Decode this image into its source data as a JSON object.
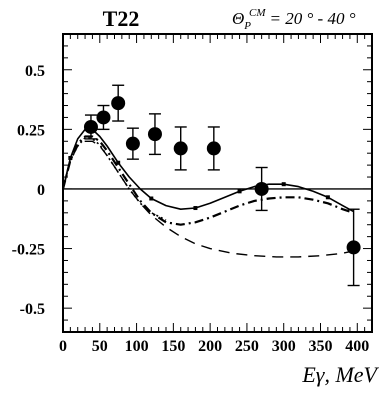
{
  "chart_data": {
    "type": "scatter",
    "title": "T22",
    "angle_label": {
      "symbol": "Θ",
      "subscript": "P",
      "superscript": "CM",
      "range_text": "= 20 ° - 40 °"
    },
    "xlabel": "Eγ, MeV",
    "ylabel": "",
    "xlim": [
      0,
      420
    ],
    "ylim": [
      -0.6,
      0.65
    ],
    "x_ticks": [
      0,
      50,
      100,
      150,
      200,
      250,
      300,
      350,
      400
    ],
    "y_ticks": [
      0.5,
      0.25,
      0,
      -0.25,
      -0.5
    ],
    "y_tick_labels": [
      "0.5",
      "0.25",
      "0",
      "-0.25",
      "-0.5"
    ],
    "grid": false,
    "series": [
      {
        "style": "data-points",
        "x": [
          38,
          55,
          75,
          95,
          125,
          160,
          205,
          270,
          395
        ],
        "y": [
          0.26,
          0.3,
          0.36,
          0.19,
          0.23,
          0.17,
          0.17,
          0.0,
          -0.245
        ],
        "yerr": [
          0.05,
          0.05,
          0.075,
          0.065,
          0.085,
          0.09,
          0.09,
          0.09,
          0.16
        ]
      },
      {
        "style": "solid-with-markers",
        "x": [
          0,
          10,
          20,
          30,
          40,
          50,
          60,
          75,
          90,
          105,
          120,
          140,
          160,
          180,
          200,
          220,
          240,
          260,
          280,
          300,
          320,
          340,
          360,
          380,
          395
        ],
        "y": [
          0.0,
          0.13,
          0.21,
          0.25,
          0.25,
          0.22,
          0.18,
          0.11,
          0.05,
          0.0,
          -0.04,
          -0.07,
          -0.085,
          -0.08,
          -0.06,
          -0.035,
          -0.01,
          0.01,
          0.02,
          0.02,
          0.01,
          -0.01,
          -0.035,
          -0.07,
          -0.095
        ]
      },
      {
        "style": "dash-dot",
        "x": [
          0,
          10,
          20,
          30,
          40,
          50,
          60,
          75,
          90,
          105,
          120,
          140,
          160,
          180,
          200,
          220,
          240,
          260,
          280,
          300,
          320,
          340,
          360,
          380,
          395
        ],
        "y": [
          0.0,
          0.12,
          0.19,
          0.22,
          0.22,
          0.2,
          0.16,
          0.09,
          0.02,
          -0.05,
          -0.1,
          -0.14,
          -0.15,
          -0.14,
          -0.12,
          -0.095,
          -0.07,
          -0.05,
          -0.04,
          -0.035,
          -0.035,
          -0.045,
          -0.06,
          -0.085,
          -0.1
        ]
      },
      {
        "style": "dotted",
        "x": [
          0,
          10,
          20,
          30,
          40,
          50,
          60,
          75,
          90,
          105,
          120,
          140
        ],
        "y": [
          0.0,
          0.12,
          0.18,
          0.215,
          0.21,
          0.185,
          0.14,
          0.07,
          0.0,
          -0.06,
          -0.1,
          -0.13
        ]
      },
      {
        "style": "dashed",
        "x": [
          0,
          10,
          20,
          30,
          40,
          50,
          60,
          75,
          90,
          105,
          120,
          140,
          160,
          180,
          200,
          230,
          260,
          290,
          320,
          350,
          380,
          395
        ],
        "y": [
          0.0,
          0.12,
          0.18,
          0.2,
          0.2,
          0.18,
          0.14,
          0.07,
          0.0,
          -0.06,
          -0.11,
          -0.16,
          -0.2,
          -0.23,
          -0.25,
          -0.27,
          -0.28,
          -0.285,
          -0.285,
          -0.28,
          -0.27,
          -0.26
        ]
      }
    ]
  }
}
